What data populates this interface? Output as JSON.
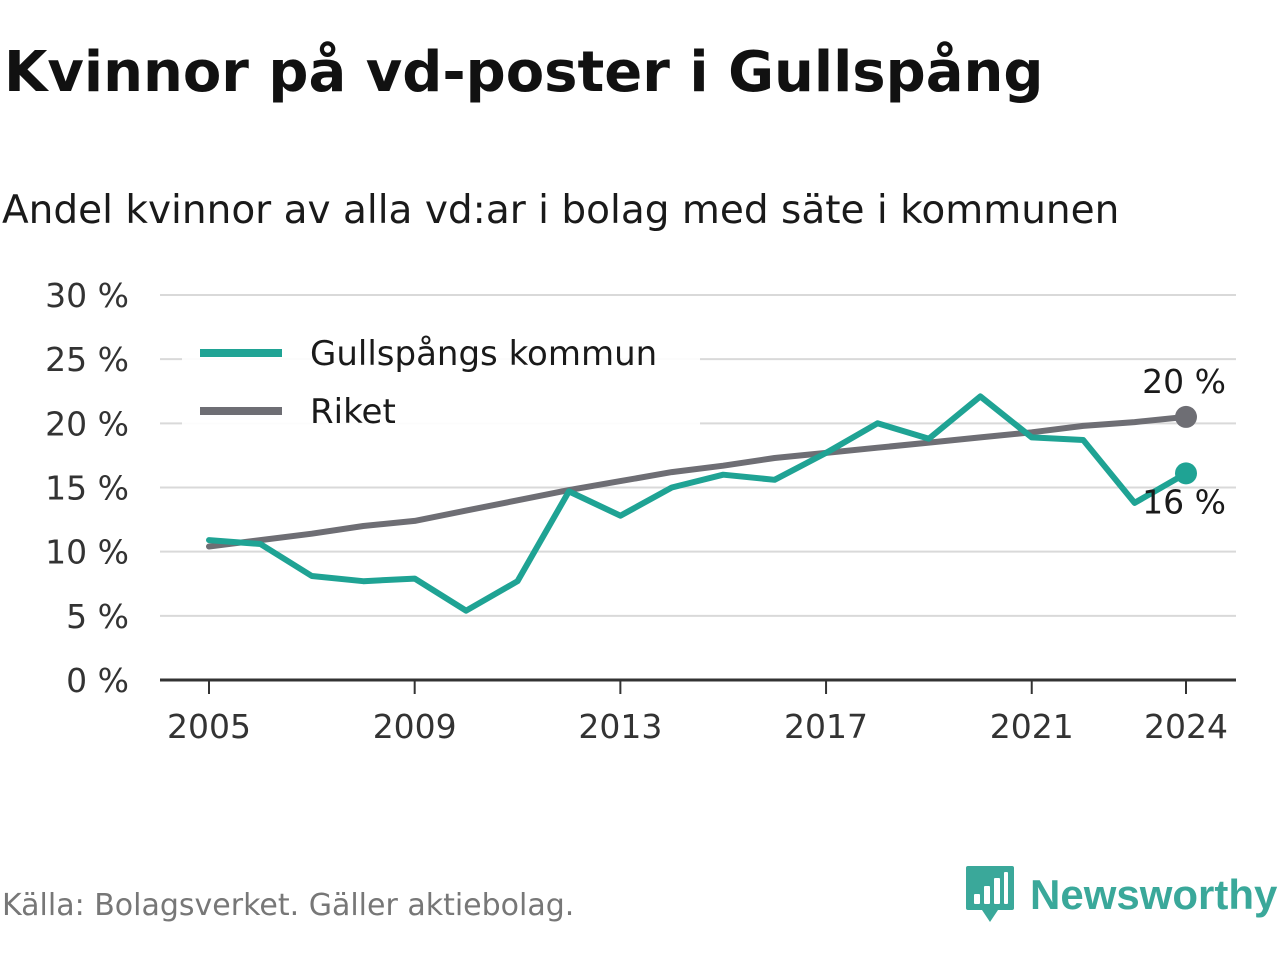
{
  "header": {
    "title": "Kvinnor på vd-poster i Gullspång",
    "subtitle": "Andel kvinnor av alla vd:ar i bolag med säte i kommunen"
  },
  "footer": {
    "source": "Källa: Bolagsverket. Gäller aktiebolag.",
    "brand": "Newsworthy",
    "brand_icon": "bar-chart-badge-icon"
  },
  "chart_data": {
    "type": "line",
    "title": "Kvinnor på vd-poster i Gullspång",
    "subtitle": "Andel kvinnor av alla vd:ar i bolag med säte i kommunen",
    "xlabel": "",
    "ylabel": "",
    "ylim": [
      0,
      30
    ],
    "xlim": [
      2005,
      2024
    ],
    "grid": true,
    "legend_position": "top-left",
    "x_ticks": [
      2005,
      2009,
      2013,
      2017,
      2021,
      2024
    ],
    "y_ticks": [
      {
        "value": 0,
        "label": "0 %"
      },
      {
        "value": 5,
        "label": "5 %"
      },
      {
        "value": 10,
        "label": "10 %"
      },
      {
        "value": 15,
        "label": "15 %"
      },
      {
        "value": 20,
        "label": "20 %"
      },
      {
        "value": 25,
        "label": "25 %"
      },
      {
        "value": 30,
        "label": "30 %"
      }
    ],
    "x": [
      2005,
      2006,
      2007,
      2008,
      2009,
      2010,
      2011,
      2012,
      2013,
      2014,
      2015,
      2016,
      2017,
      2018,
      2019,
      2020,
      2021,
      2022,
      2023,
      2024
    ],
    "series": [
      {
        "name": "Gullspångs kommun",
        "color": "#1fa394",
        "values": [
          10.9,
          10.6,
          8.1,
          7.7,
          7.9,
          5.4,
          7.7,
          14.7,
          12.8,
          15.0,
          16.0,
          15.6,
          17.7,
          20.0,
          18.8,
          22.1,
          18.9,
          18.7,
          13.8,
          16.1
        ],
        "end_label": "16 %"
      },
      {
        "name": "Riket",
        "color": "#6e6e74",
        "values": [
          10.4,
          10.9,
          11.4,
          12.0,
          12.4,
          13.2,
          14.0,
          14.8,
          15.5,
          16.2,
          16.7,
          17.3,
          17.7,
          18.1,
          18.5,
          18.9,
          19.3,
          19.8,
          20.1,
          20.5
        ],
        "end_label": "20 %"
      }
    ],
    "colors": {
      "grid": "#d9d9d9",
      "axis": "#333333"
    }
  }
}
